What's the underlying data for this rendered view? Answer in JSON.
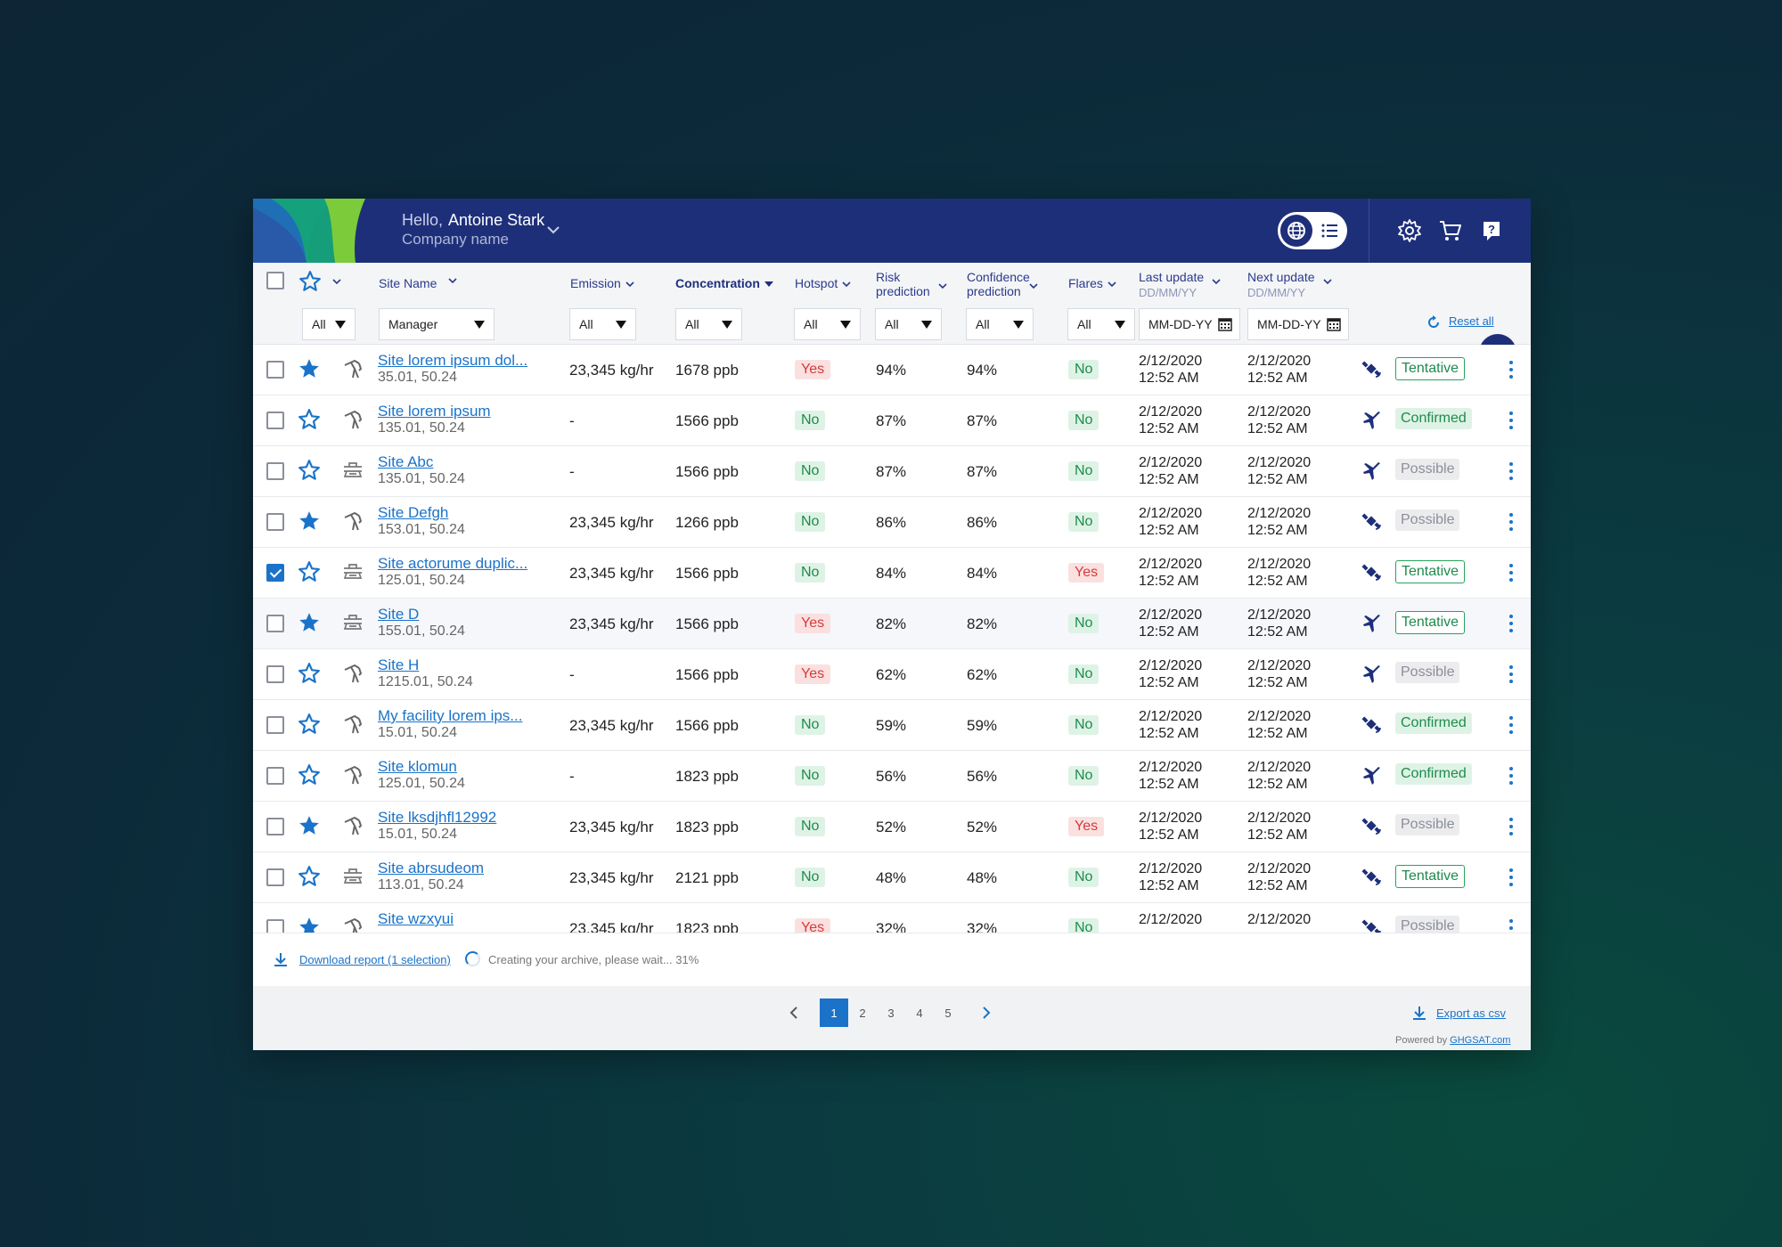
{
  "header": {
    "greeting": "Hello,",
    "user_name": "Antoine Stark",
    "company": "Company name"
  },
  "colors": {
    "header_bg": "#1e2f7a",
    "accent": "#1a73c9",
    "yes_red": "#d63a3a",
    "no_green": "#1f8b4c"
  },
  "columns": {
    "site_name": "Site Name",
    "emission": "Emission",
    "concentration": "Concentration",
    "hotspot": "Hotspot",
    "risk_1": "Risk",
    "risk_2": "prediction",
    "confidence_1": "Confidence",
    "confidence_2": "prediction",
    "flares": "Flares",
    "last_update": "Last update",
    "next_update": "Next update",
    "date_format": "DD/MM/YY"
  },
  "filters": {
    "star": "All",
    "site_name": "Manager",
    "emission": "All",
    "concentration": "All",
    "hotspot": "All",
    "risk": "All",
    "confidence": "All",
    "flares": "All",
    "last_update_placeholder": "MM-DD-YY",
    "next_update_placeholder": "MM-DD-YY",
    "reset": "Reset all"
  },
  "rows": [
    {
      "checked": false,
      "starred": true,
      "type": "pump",
      "name": "Site lorem ipsum dol...",
      "coords": "35.01, 50.24",
      "emission": "23,345 kg/hr",
      "concentration": "1678 ppb",
      "hotspot": "Yes",
      "risk": "94%",
      "confidence": "94%",
      "flares": "No",
      "last_date": "2/12/2020",
      "last_time": "12:52 AM",
      "next_date": "2/12/2020",
      "next_time": "12:52 AM",
      "source": "satellite",
      "status": "Tentative"
    },
    {
      "checked": false,
      "starred": false,
      "type": "pump",
      "name": "Site lorem ipsum",
      "coords": "135.01, 50.24",
      "emission": "-",
      "concentration": "1566 ppb",
      "hotspot": "No",
      "risk": "87%",
      "confidence": "87%",
      "flares": "No",
      "last_date": "2/12/2020",
      "last_time": "12:52 AM",
      "next_date": "2/12/2020",
      "next_time": "12:52 AM",
      "source": "plane",
      "status": "Confirmed"
    },
    {
      "checked": false,
      "starred": false,
      "type": "pipeline",
      "name": "Site Abc",
      "coords": "135.01, 50.24",
      "emission": "-",
      "concentration": "1566 ppb",
      "hotspot": "No",
      "risk": "87%",
      "confidence": "87%",
      "flares": "No",
      "last_date": "2/12/2020",
      "last_time": "12:52 AM",
      "next_date": "2/12/2020",
      "next_time": "12:52 AM",
      "source": "plane",
      "status": "Possible"
    },
    {
      "checked": false,
      "starred": true,
      "type": "pump",
      "name": "Site Defgh",
      "coords": "153.01, 50.24",
      "emission": "23,345 kg/hr",
      "concentration": "1266 ppb",
      "hotspot": "No",
      "risk": "86%",
      "confidence": "86%",
      "flares": "No",
      "last_date": "2/12/2020",
      "last_time": "12:52 AM",
      "next_date": "2/12/2020",
      "next_time": "12:52 AM",
      "source": "satellite",
      "status": "Possible"
    },
    {
      "checked": true,
      "starred": false,
      "type": "pipeline",
      "name": "Site actorume duplic...",
      "coords": "125.01, 50.24",
      "emission": "23,345 kg/hr",
      "concentration": "1566 ppb",
      "hotspot": "No",
      "risk": "84%",
      "confidence": "84%",
      "flares": "Yes",
      "last_date": "2/12/2020",
      "last_time": "12:52 AM",
      "next_date": "2/12/2020",
      "next_time": "12:52 AM",
      "source": "satellite",
      "status": "Tentative"
    },
    {
      "checked": false,
      "starred": true,
      "type": "pipeline",
      "name": "Site D",
      "coords": "155.01, 50.24",
      "emission": "23,345 kg/hr",
      "concentration": "1566 ppb",
      "hotspot": "Yes",
      "risk": "82%",
      "confidence": "82%",
      "flares": "No",
      "last_date": "2/12/2020",
      "last_time": "12:52 AM",
      "next_date": "2/12/2020",
      "next_time": "12:52 AM",
      "source": "plane",
      "status": "Tentative"
    },
    {
      "checked": false,
      "starred": false,
      "type": "pump",
      "name": "Site H",
      "coords": "1215.01, 50.24",
      "emission": "-",
      "concentration": "1566 ppb",
      "hotspot": "Yes",
      "risk": "62%",
      "confidence": "62%",
      "flares": "No",
      "last_date": "2/12/2020",
      "last_time": "12:52 AM",
      "next_date": "2/12/2020",
      "next_time": "12:52 AM",
      "source": "plane",
      "status": "Possible"
    },
    {
      "checked": false,
      "starred": false,
      "type": "pump",
      "name": "My facility lorem ips...",
      "coords": "15.01, 50.24",
      "emission": "23,345 kg/hr",
      "concentration": "1566 ppb",
      "hotspot": "No",
      "risk": "59%",
      "confidence": "59%",
      "flares": "No",
      "last_date": "2/12/2020",
      "last_time": "12:52 AM",
      "next_date": "2/12/2020",
      "next_time": "12:52 AM",
      "source": "satellite",
      "status": "Confirmed"
    },
    {
      "checked": false,
      "starred": false,
      "type": "pump",
      "name": "Site klomun",
      "coords": "125.01, 50.24",
      "emission": "-",
      "concentration": "1823 ppb",
      "hotspot": "No",
      "risk": "56%",
      "confidence": "56%",
      "flares": "No",
      "last_date": "2/12/2020",
      "last_time": "12:52 AM",
      "next_date": "2/12/2020",
      "next_time": "12:52 AM",
      "source": "plane",
      "status": "Confirmed"
    },
    {
      "checked": false,
      "starred": true,
      "type": "pump",
      "name": "Site lksdjhfl12992",
      "coords": "15.01, 50.24",
      "emission": "23,345 kg/hr",
      "concentration": "1823 ppb",
      "hotspot": "No",
      "risk": "52%",
      "confidence": "52%",
      "flares": "Yes",
      "last_date": "2/12/2020",
      "last_time": "12:52 AM",
      "next_date": "2/12/2020",
      "next_time": "12:52 AM",
      "source": "satellite",
      "status": "Possible"
    },
    {
      "checked": false,
      "starred": false,
      "type": "pipeline",
      "name": "Site abrsudeom",
      "coords": "113.01, 50.24",
      "emission": "23,345 kg/hr",
      "concentration": "2121 ppb",
      "hotspot": "No",
      "risk": "48%",
      "confidence": "48%",
      "flares": "No",
      "last_date": "2/12/2020",
      "last_time": "12:52 AM",
      "next_date": "2/12/2020",
      "next_time": "12:52 AM",
      "source": "satellite",
      "status": "Tentative"
    },
    {
      "checked": false,
      "starred": true,
      "type": "pump",
      "name": "Site wzxyui",
      "coords": "",
      "emission": "23,345 kg/hr",
      "concentration": "1823 ppb",
      "hotspot": "Yes",
      "risk": "32%",
      "confidence": "32%",
      "flares": "No",
      "last_date": "2/12/2020",
      "last_time": "",
      "next_date": "2/12/2020",
      "next_time": "",
      "source": "satellite",
      "status": "Possible"
    }
  ],
  "footer": {
    "download_label": "Download report (1 selection)",
    "archive_status": "Creating your archive, please wait... 31%",
    "archive_progress_pct": 31,
    "pages": [
      "1",
      "2",
      "3",
      "4",
      "5"
    ],
    "current_page": "1",
    "export_label": "Export as csv",
    "powered_by": "Powered by",
    "powered_link": "GHGSAT.com"
  }
}
